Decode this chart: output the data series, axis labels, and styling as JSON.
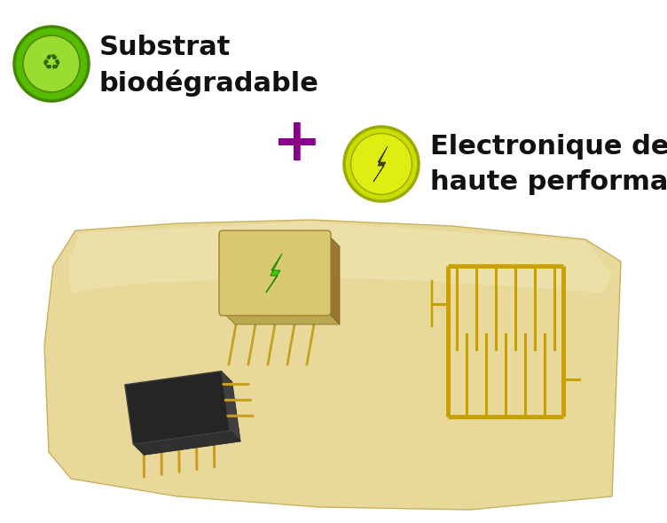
{
  "bg_color": "#ffffff",
  "label1_text_line1": "Substrat",
  "label1_text_line2": "biodégradable",
  "plus_text": "+",
  "plus_color": "#8b008b",
  "label2_text_line1": "Electronique de",
  "label2_text_line2": "haute performance",
  "substrate_color": "#e8d99a",
  "substrate_shadow": "#d4c57a",
  "substrate_highlight": "#f0e8b8",
  "gold_color": "#c8a000",
  "gold_dark": "#a07800",
  "chip_top_color": "#d8c870",
  "chip_side_color": "#b8a850",
  "chip_dark_side": "#987830",
  "black_chip_color": "#252525",
  "bolt_green": "#44cc00",
  "icon1_outer": "#55bb00",
  "icon1_inner": "#77dd11",
  "icon2_color": "#ccdd00",
  "icon2_border": "#99aa00",
  "text_color": "#111111",
  "font_size_label": 20,
  "font_size_plus": 48
}
